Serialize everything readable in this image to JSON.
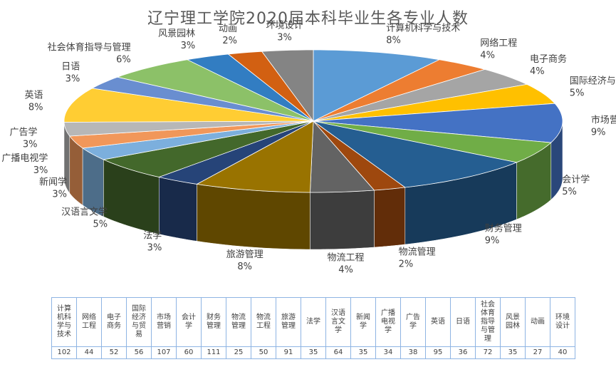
{
  "chart_data": {
    "type": "pie",
    "title": "辽宁理工学院2020届本科毕业生各专业人数",
    "categories": [
      "计算机科学与技术",
      "网络工程",
      "电子商务",
      "国际经济与贸易",
      "市场营销",
      "会计学",
      "财务管理",
      "物流管理",
      "物流工程",
      "旅游管理",
      "法学",
      "汉语言文学",
      "新闻学",
      "广播电视学",
      "广告学",
      "英语",
      "日语",
      "社会体育指导与管理",
      "风景园林",
      "动画",
      "环境设计"
    ],
    "values": [
      102,
      44,
      52,
      56,
      107,
      60,
      111,
      25,
      50,
      91,
      35,
      64,
      35,
      34,
      38,
      95,
      36,
      72,
      35,
      27,
      40
    ],
    "percent_labels": [
      "8%",
      "4%",
      "4%",
      "5%",
      "9%",
      "5%",
      "9%",
      "2%",
      "4%",
      "8%",
      "3%",
      "5%",
      "3%",
      "3%",
      "3%",
      "8%",
      "3%",
      "6%",
      "3%",
      "2%",
      "3%"
    ],
    "colors": [
      "#5B9BD5",
      "#ED7D31",
      "#A5A5A5",
      "#FFC000",
      "#4472C4",
      "#70AD47",
      "#255E91",
      "#9E480E",
      "#636363",
      "#997300",
      "#264478",
      "#43682B",
      "#7CAFDD",
      "#F1975A",
      "#B7B7B7",
      "#FFCD33",
      "#698ED0",
      "#8CC168",
      "#327DC2",
      "#D26012",
      "#848484"
    ],
    "legend": "none",
    "style": "3d-pie"
  }
}
